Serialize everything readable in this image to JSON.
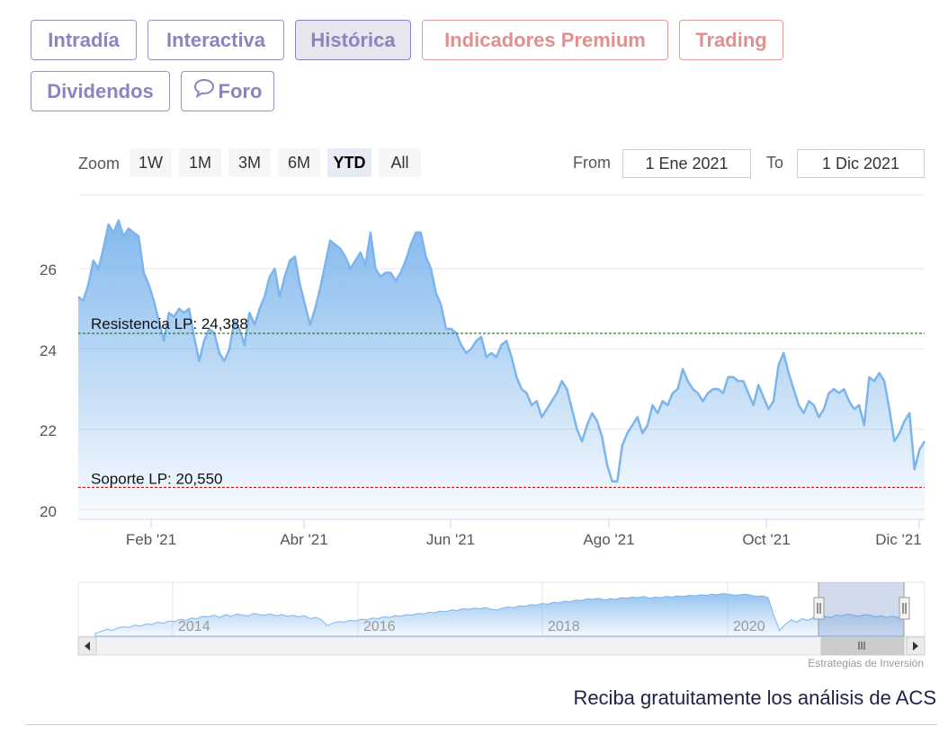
{
  "tabs": [
    {
      "label": "Intradía",
      "style": "normal"
    },
    {
      "label": "Interactiva",
      "style": "normal"
    },
    {
      "label": "Histórica",
      "style": "active"
    },
    {
      "label": "Indicadores Premium",
      "style": "premium"
    },
    {
      "label": "Trading",
      "style": "premium"
    },
    {
      "label": "Dividendos",
      "style": "normal"
    },
    {
      "label": "Foro",
      "style": "normal",
      "icon": "speech-bubble-icon"
    }
  ],
  "range_selector": {
    "zoom_label": "Zoom",
    "buttons": [
      "1W",
      "1M",
      "3M",
      "6M",
      "YTD",
      "All"
    ],
    "selected": "YTD",
    "from_label": "From",
    "from_value": "1 Ene 2021",
    "to_label": "To",
    "to_value": "1 Dic 2021"
  },
  "colors": {
    "series": "#7cb5ec",
    "resistance": "#2e7d32",
    "support": "#b71c1c",
    "tab_border": "#9b93c8",
    "tab_text": "#8b83c2",
    "premium": "#e0908e"
  },
  "chart_data": {
    "type": "area",
    "x_axis": {
      "tick_labels": [
        "Feb '21",
        "Abr '21",
        "Jun '21",
        "Ago '21",
        "Oct '21",
        "Dic '21"
      ]
    },
    "y_axis": {
      "tick_labels": [
        "20",
        "22",
        "24",
        "26"
      ],
      "range": [
        20,
        27.6
      ]
    },
    "series": [
      {
        "values": [
          25.3,
          25.2,
          25.6,
          26.2,
          26.0,
          26.5,
          27.1,
          26.9,
          27.2,
          26.8,
          27.0,
          26.9,
          26.8,
          25.9,
          25.6,
          25.2,
          24.7,
          24.2,
          24.9,
          24.8,
          25.0,
          24.9,
          25.0,
          24.3,
          23.7,
          24.2,
          24.5,
          24.4,
          23.9,
          23.7,
          24.0,
          24.7,
          24.5,
          24.1,
          24.9,
          24.6,
          25.0,
          25.3,
          25.8,
          26.0,
          25.3,
          25.8,
          26.2,
          26.3,
          25.6,
          25.1,
          24.6,
          25.0,
          25.5,
          26.1,
          26.7,
          26.6,
          26.5,
          26.3,
          26.0,
          26.2,
          26.4,
          26.1,
          26.9,
          26.0,
          25.8,
          25.9,
          25.9,
          25.7,
          25.9,
          26.2,
          26.6,
          26.9,
          26.9,
          26.3,
          26.0,
          25.4,
          25.1,
          24.5,
          24.5,
          24.4,
          24.1,
          23.9,
          24.0,
          24.2,
          24.3,
          23.8,
          23.9,
          23.8,
          24.1,
          24.2,
          23.8,
          23.3,
          23.0,
          22.9,
          22.6,
          22.7,
          22.3,
          22.5,
          22.7,
          22.9,
          23.2,
          23.0,
          22.5,
          22.0,
          21.7,
          22.1,
          22.4,
          22.2,
          21.8,
          21.1,
          20.7,
          20.7,
          21.6,
          21.9,
          22.1,
          22.3,
          21.9,
          22.1,
          22.6,
          22.4,
          22.7,
          22.6,
          22.9,
          23.0,
          23.5,
          23.2,
          23.0,
          22.9,
          22.7,
          22.9,
          23.0,
          23.0,
          22.9,
          23.3,
          23.3,
          23.2,
          23.2,
          22.9,
          22.6,
          23.1,
          22.8,
          22.5,
          22.7,
          23.6,
          23.9,
          23.4,
          23.0,
          22.6,
          22.4,
          22.7,
          22.6,
          22.3,
          22.5,
          22.9,
          23.0,
          22.9,
          23.0,
          22.7,
          22.5,
          22.6,
          22.1,
          23.3,
          23.2,
          23.4,
          23.2,
          22.5,
          21.7,
          21.9,
          22.2,
          22.4,
          21.0,
          21.5,
          21.7
        ]
      }
    ],
    "annotations": [
      {
        "label": "Resistencia LP: 24,388",
        "value": 24.388
      },
      {
        "label": "Soporte LP: 20,550",
        "value": 20.55
      }
    ],
    "navigator": {
      "x_tick_labels": [
        "2014",
        "2016",
        "2018",
        "2020"
      ],
      "values": [
        0.55,
        0.58,
        0.62,
        0.6,
        0.64,
        0.66,
        0.65,
        0.69,
        0.67,
        0.71,
        0.7,
        0.74,
        0.72,
        0.76,
        0.75,
        0.79,
        0.77,
        0.81,
        0.8,
        0.84,
        0.83,
        0.86,
        0.82,
        0.87,
        0.84,
        0.88,
        0.86,
        0.85,
        0.89,
        0.87,
        0.86,
        0.88,
        0.85,
        0.87,
        0.84,
        0.86,
        0.83,
        0.85,
        0.8,
        0.82,
        0.78,
        0.68,
        0.72,
        0.75,
        0.74,
        0.77,
        0.76,
        0.79,
        0.78,
        0.81,
        0.8,
        0.83,
        0.82,
        0.85,
        0.84,
        0.87,
        0.86,
        0.89,
        0.88,
        0.91,
        0.9,
        0.93,
        0.92,
        0.95,
        0.94,
        0.97,
        0.96,
        0.98,
        0.97,
        0.99,
        0.96,
        0.95,
        0.98,
        1.0,
        0.99,
        1.02,
        1.01,
        1.04,
        1.03,
        1.06,
        1.05,
        1.08,
        1.07,
        1.1,
        1.09,
        1.12,
        1.11,
        1.14,
        1.13,
        1.15,
        1.12,
        1.14,
        1.13,
        1.16,
        1.15,
        1.17,
        1.16,
        1.18,
        1.15,
        1.17,
        1.16,
        1.18,
        1.17,
        1.19,
        1.18,
        1.2,
        1.19,
        1.21,
        1.2,
        1.22,
        1.21,
        1.23,
        1.22,
        1.2,
        1.21,
        1.22,
        1.2,
        1.18,
        1.19,
        1.16,
        0.85,
        0.6,
        0.7,
        0.78,
        0.74,
        0.8,
        0.77,
        0.82,
        0.8,
        0.84,
        0.82,
        0.86,
        0.85,
        0.88,
        0.86,
        0.84,
        0.87,
        0.86,
        0.83,
        0.85,
        0.82,
        0.84,
        0.82,
        0.81
      ]
    }
  },
  "credits": "Estrategias de Inversión",
  "promo_text": "Reciba gratuitamente los análisis de ACS"
}
